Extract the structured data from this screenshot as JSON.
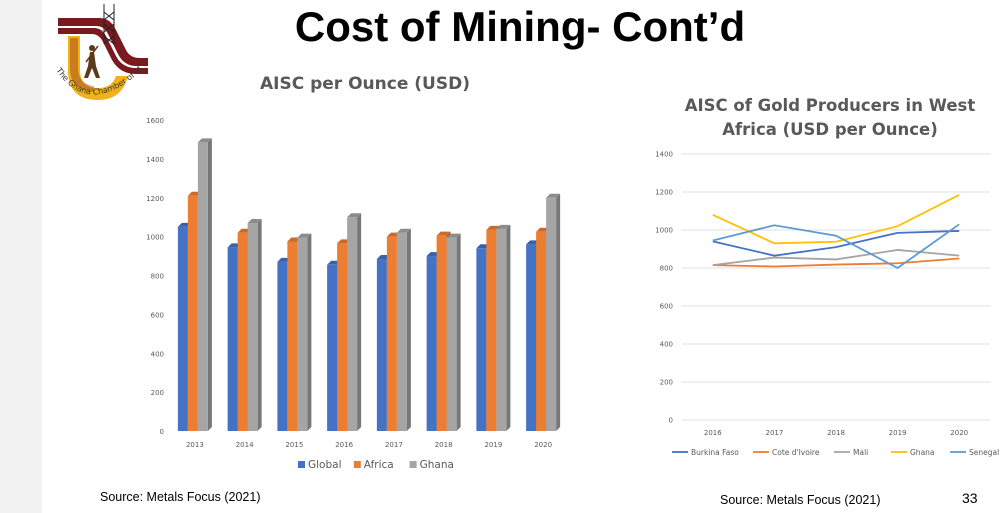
{
  "slide": {
    "title": "Cost of Mining- Cont’d",
    "logo_text": "The Ghana Chamber of Mines",
    "page_number": "33"
  },
  "colors": {
    "global": "#4472c4",
    "africa": "#ed7d31",
    "ghana": "#a5a5a5",
    "burkina_faso": "#4472c4",
    "cote_divoire": "#ed7d31",
    "mali": "#a5a5a5",
    "ghana_line": "#ffc000",
    "senegal": "#5b9bd5",
    "logo_maroon": "#7b1a1e",
    "logo_gold": "#f2b21c"
  },
  "chart_data": [
    {
      "type": "bar",
      "title": "AISC per Ounce (USD)",
      "source": "Source: Metals Focus (2021)",
      "categories": [
        "2013",
        "2014",
        "2015",
        "2016",
        "2017",
        "2018",
        "2019",
        "2020"
      ],
      "series": [
        {
          "name": "Global",
          "values": [
            1050,
            945,
            870,
            855,
            885,
            900,
            940,
            960
          ]
        },
        {
          "name": "Africa",
          "values": [
            1210,
            1020,
            975,
            965,
            1000,
            1005,
            1035,
            1025
          ]
        },
        {
          "name": "Ghana",
          "values": [
            1485,
            1070,
            995,
            1100,
            1020,
            995,
            1040,
            1200
          ]
        }
      ],
      "y_ticks": [
        "0",
        "200",
        "400",
        "600",
        "800",
        "1000",
        "1200",
        "1400",
        "1600"
      ],
      "ylim": [
        0,
        1600
      ],
      "grid": false,
      "legend_position": "bottom"
    },
    {
      "type": "line",
      "title": "AISC of Gold Producers in West Africa (USD per Ounce)",
      "source": "Source: Metals Focus (2021)",
      "categories": [
        "2016",
        "2017",
        "2018",
        "2019",
        "2020"
      ],
      "series": [
        {
          "name": "Burkina Faso",
          "values": [
            940,
            865,
            910,
            985,
            995
          ]
        },
        {
          "name": "Cote d'Ivoire",
          "values": [
            815,
            808,
            818,
            825,
            850
          ]
        },
        {
          "name": "Mali",
          "values": [
            815,
            855,
            845,
            895,
            865
          ]
        },
        {
          "name": "Ghana",
          "values": [
            1080,
            930,
            938,
            1020,
            1185
          ]
        },
        {
          "name": "Senegal",
          "values": [
            945,
            1025,
            970,
            800,
            1030
          ]
        }
      ],
      "y_ticks": [
        "0",
        "200",
        "400",
        "600",
        "800",
        "1000",
        "1200",
        "1400"
      ],
      "ylim": [
        0,
        1400
      ],
      "grid": true,
      "legend_position": "bottom"
    }
  ]
}
